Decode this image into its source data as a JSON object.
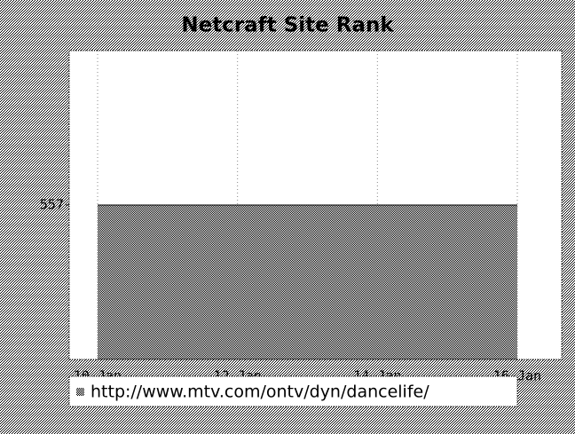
{
  "chart_data": {
    "type": "area",
    "title": "Netcraft Site Rank",
    "categories": [
      "10-Jan",
      null,
      "12-Jan",
      null,
      "14-Jan",
      null,
      "16-Jan"
    ],
    "series": [
      {
        "name": "http://www.mtv.com/ontv/dyn/dancelife/",
        "color": "#808080",
        "values": [
          557,
          557,
          557,
          557,
          557,
          557,
          557
        ]
      }
    ],
    "ylim": [
      556,
      558
    ],
    "yticks": [
      557
    ],
    "grid": true
  }
}
